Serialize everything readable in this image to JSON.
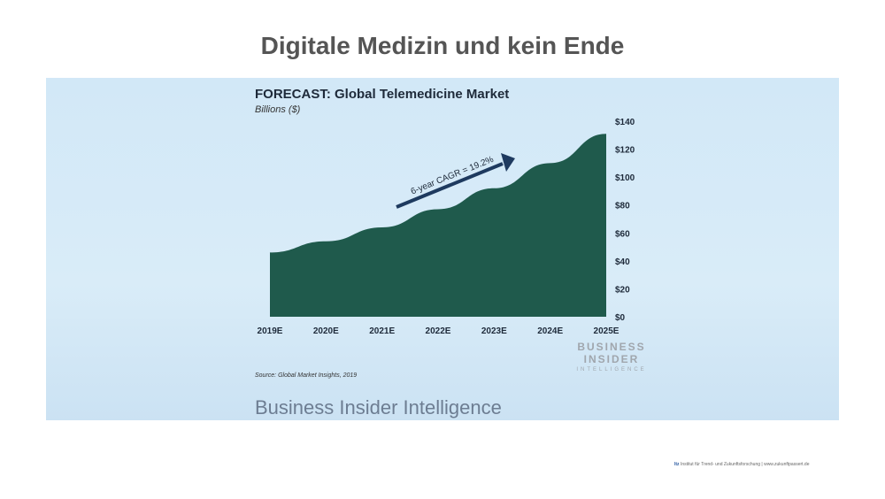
{
  "slide": {
    "title": "Digitale Medizin und kein Ende"
  },
  "chart_data": {
    "type": "area",
    "title": "FORECAST: Global Telemedicine Market",
    "subtitle": "Billions ($)",
    "categories": [
      "2019E",
      "2020E",
      "2021E",
      "2022E",
      "2023E",
      "2024E",
      "2025E"
    ],
    "values": [
      46,
      54,
      64,
      77,
      92,
      110,
      131
    ],
    "y_axis": {
      "min": 0,
      "max": 140,
      "ticks": [
        0,
        20,
        40,
        60,
        80,
        100,
        120,
        140
      ],
      "tick_labels": [
        "$0",
        "$20",
        "$40",
        "$60",
        "$80",
        "$100",
        "$120",
        "$140"
      ],
      "position": "right"
    },
    "annotation": "6-year CAGR = 19.2%",
    "fill_color": "#1f5a4c",
    "arrow_color": "#1e3a5f",
    "source": "Source: Global Market Insights, 2019"
  },
  "logo": {
    "line1": "BUSINESS",
    "line2": "INSIDER",
    "line3": "INTELLIGENCE"
  },
  "footer": {
    "brand": "Business Insider Intelligence"
  },
  "bottom_note": {
    "org_abbrev": "Itz",
    "org_name": "Institut für Trend- und Zukunftsforschung",
    "website": "| www.zukunftpassert.de"
  }
}
